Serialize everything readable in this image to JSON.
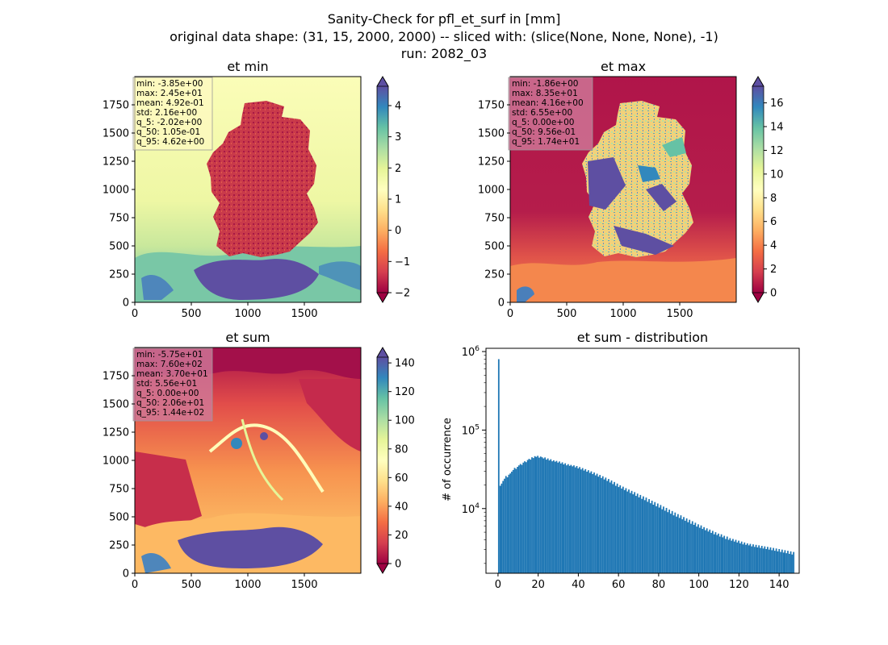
{
  "figure": {
    "title_lines": [
      "Sanity-Check for pfl_et_surf in [mm]",
      "original data shape: (31, 15, 2000, 2000) -- sliced with: (slice(None, None, None), -1)",
      "run: 2082_03"
    ]
  },
  "chart_data": [
    {
      "type": "heatmap",
      "title": "et min",
      "xlim": [
        0,
        2000
      ],
      "ylim": [
        0,
        2000
      ],
      "xticks": [
        "0",
        "500",
        "1000",
        "1500"
      ],
      "yticks": [
        "0",
        "250",
        "500",
        "750",
        "1000",
        "1250",
        "1500",
        "1750"
      ],
      "colormap": "Spectral",
      "colorbar": {
        "min": -2,
        "max": 4.62,
        "ticks": [
          "−2",
          "−1",
          "0",
          "1",
          "2",
          "3",
          "4"
        ],
        "extend": "both"
      },
      "stats": [
        "min: -3.85e+00",
        "max: 2.45e+01",
        "mean: 4.92e-01",
        "std: 2.16e+00",
        "q_5: -2.02e+00",
        "q_50: 1.05e-01",
        "q_95: 4.62e+00"
      ],
      "stats_box_color": "#fff9c4"
    },
    {
      "type": "heatmap",
      "title": "et max",
      "xlim": [
        0,
        2000
      ],
      "ylim": [
        0,
        2000
      ],
      "xticks": [
        "0",
        "500",
        "1000",
        "1500"
      ],
      "yticks": [
        "0",
        "250",
        "500",
        "750",
        "1000",
        "1250",
        "1500",
        "1750"
      ],
      "colormap": "Spectral",
      "colorbar": {
        "min": 0,
        "max": 17.4,
        "ticks": [
          "0",
          "2",
          "4",
          "6",
          "8",
          "10",
          "12",
          "14",
          "16"
        ],
        "extend": "both"
      },
      "stats": [
        "min: -1.86e+00",
        "max: 8.35e+01",
        "mean: 4.16e+00",
        "std: 6.55e+00",
        "q_5: 0.00e+00",
        "q_50: 9.56e-01",
        "q_95: 1.74e+01"
      ],
      "stats_box_color": "#d07a9a"
    },
    {
      "type": "heatmap",
      "title": "et sum",
      "xlim": [
        0,
        2000
      ],
      "ylim": [
        0,
        2000
      ],
      "xticks": [
        "0",
        "500",
        "1000",
        "1500"
      ],
      "yticks": [
        "0",
        "250",
        "500",
        "750",
        "1000",
        "1250",
        "1500",
        "1750"
      ],
      "colormap": "Spectral",
      "colorbar": {
        "min": 0,
        "max": 144,
        "ticks": [
          "0",
          "20",
          "40",
          "60",
          "80",
          "100",
          "120",
          "140"
        ],
        "extend": "both"
      },
      "stats": [
        "min: -5.75e+01",
        "max: 7.60e+02",
        "mean: 3.70e+01",
        "std: 5.56e+01",
        "q_5: 0.00e+00",
        "q_50: 2.06e+01",
        "q_95: 1.44e+02"
      ],
      "stats_box_color": "#d07a9a"
    },
    {
      "type": "bar",
      "title": "et sum - distribution",
      "ylabel": "# of occurrence",
      "xlabel": "",
      "y_scale": "log",
      "xlim": [
        -6,
        150
      ],
      "ylim": [
        1500,
        1100000
      ],
      "xticks": [
        "0",
        "20",
        "40",
        "60",
        "80",
        "100",
        "120",
        "140"
      ],
      "yticks": [
        "10^4",
        "10^5",
        "10^6"
      ],
      "bin_start": 0,
      "bin_width": 0.72,
      "color": "#1f77b4",
      "values": [
        800000,
        19500,
        20800,
        22500,
        24000,
        26000,
        25000,
        27000,
        28000,
        29500,
        31000,
        33000,
        32000,
        34000,
        35500,
        37000,
        36000,
        38500,
        40000,
        39000,
        41500,
        43000,
        42000,
        45000,
        44000,
        46500,
        45500,
        47000,
        44500,
        46000,
        45000,
        43500,
        44800,
        42000,
        43500,
        41000,
        42500,
        40000,
        41200,
        39500,
        40500,
        38500,
        39800,
        37500,
        38800,
        36500,
        37800,
        35500,
        36800,
        35000,
        36000,
        34500,
        35500,
        33500,
        34800,
        32500,
        33800,
        31500,
        32800,
        30500,
        31800,
        29500,
        30800,
        28500,
        29800,
        27500,
        28800,
        26500,
        27800,
        25500,
        26800,
        24500,
        25800,
        23500,
        24800,
        22500,
        23800,
        21500,
        22800,
        20500,
        21800,
        19500,
        20800,
        18800,
        19800,
        18000,
        19000,
        17200,
        18200,
        16500,
        17500,
        15800,
        16800,
        15200,
        16200,
        14500,
        15500,
        13900,
        14900,
        13300,
        14300,
        12800,
        13800,
        12200,
        13200,
        11700,
        12600,
        11200,
        12100,
        10700,
        11600,
        10300,
        11100,
        9800,
        10600,
        9400,
        10200,
        9000,
        9700,
        8600,
        9300,
        8200,
        8900,
        7900,
        8500,
        7600,
        8200,
        7300,
        7800,
        7000,
        7500,
        6700,
        7200,
        6400,
        6900,
        6200,
        6600,
        5900,
        6300,
        5700,
        6100,
        5500,
        5800,
        5300,
        5600,
        5100,
        5400,
        4900,
        5200,
        4700,
        5000,
        4600,
        4800,
        4400,
        4700,
        4300,
        4500,
        4100,
        4400,
        4000,
        4200,
        3900,
        4100,
        3800,
        4000,
        3700,
        3900,
        3600,
        3800,
        3500,
        3700,
        3450,
        3600,
        3400,
        3550,
        3300,
        3500,
        3250,
        3450,
        3200,
        3400,
        3150,
        3350,
        3100,
        3300,
        3050,
        3250,
        3000,
        3200,
        2950,
        3150,
        2900,
        3100,
        2850,
        3050,
        2800,
        3000,
        2750,
        2950,
        2700,
        2900,
        2650,
        2850,
        2600,
        2800
      ]
    }
  ]
}
